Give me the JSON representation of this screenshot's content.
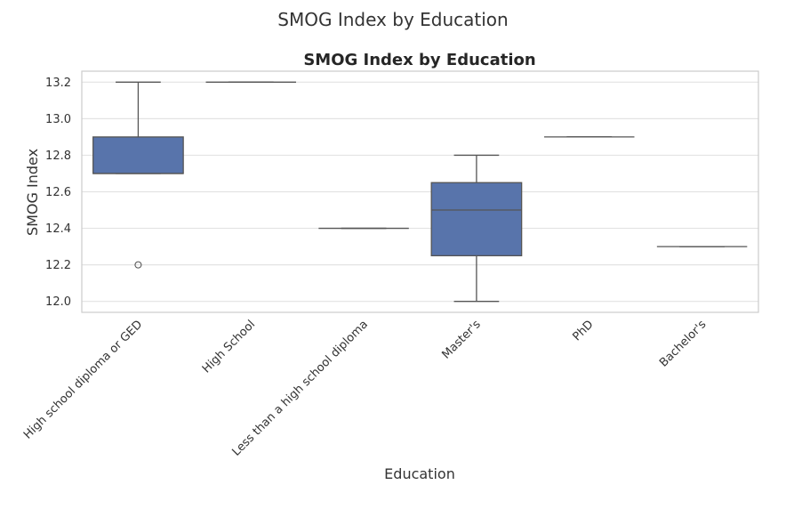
{
  "figure": {
    "suptitle": "SMOG Index by Education"
  },
  "chart_data": {
    "type": "box",
    "title": "SMOG Index by Education",
    "xlabel": "Education",
    "ylabel": "SMOG Index",
    "ylim": [
      11.94,
      13.26
    ],
    "yticks": [
      12.0,
      12.2,
      12.4,
      12.6,
      12.8,
      13.0,
      13.2
    ],
    "grid": true,
    "box_color": "#5874AB",
    "line_color": "#555555",
    "categories": [
      "High school diploma or GED",
      "High School",
      "Less than a high school diploma",
      "Master's",
      "PhD",
      "Bachelor's"
    ],
    "boxes": [
      {
        "whislo": 12.7,
        "q1": 12.7,
        "med": 12.7,
        "q3": 12.9,
        "whishi": 13.2,
        "fliers": [
          12.2
        ]
      },
      {
        "whislo": 13.2,
        "q1": 13.2,
        "med": 13.2,
        "q3": 13.2,
        "whishi": 13.2,
        "fliers": []
      },
      {
        "whislo": 12.4,
        "q1": 12.4,
        "med": 12.4,
        "q3": 12.4,
        "whishi": 12.4,
        "fliers": []
      },
      {
        "whislo": 12.0,
        "q1": 12.25,
        "med": 12.5,
        "q3": 12.65,
        "whishi": 12.8,
        "fliers": []
      },
      {
        "whislo": 12.9,
        "q1": 12.9,
        "med": 12.9,
        "q3": 12.9,
        "whishi": 12.9,
        "fliers": []
      },
      {
        "whislo": 12.3,
        "q1": 12.3,
        "med": 12.3,
        "q3": 12.3,
        "whishi": 12.3,
        "fliers": []
      }
    ]
  }
}
